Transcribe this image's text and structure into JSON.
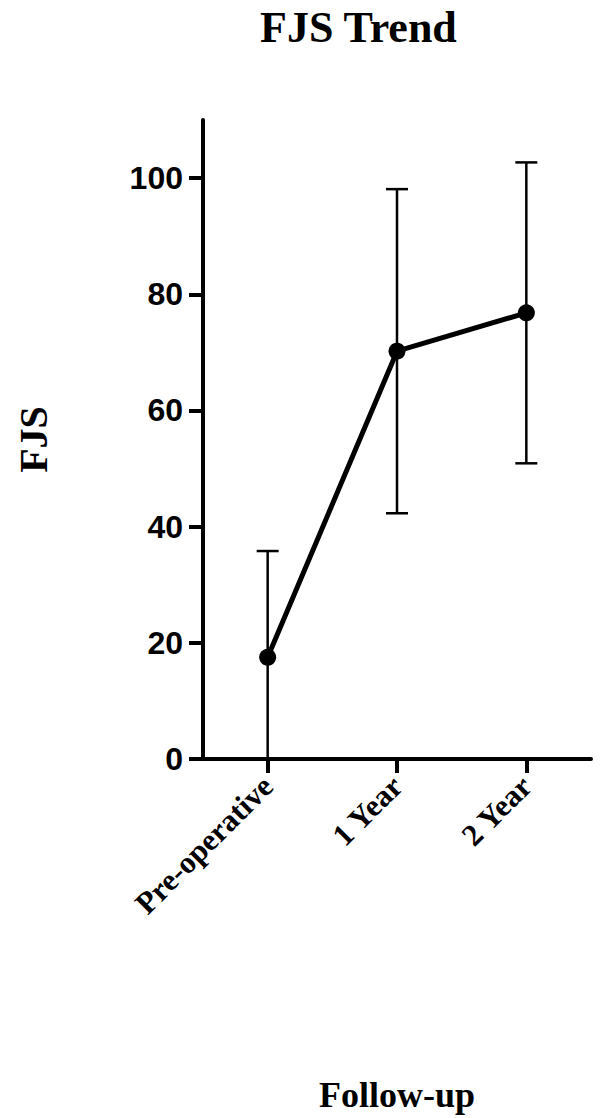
{
  "chart_data": {
    "type": "line",
    "title": "FJS Trend",
    "x_label": "Follow-up",
    "y_label": "FJS",
    "categories": [
      "Pre-operative",
      "1 Year",
      "2 Year"
    ],
    "values": [
      17.5,
      70.2,
      76.8
    ],
    "errors": [
      18.3,
      27.9,
      25.9
    ],
    "color": "#000000",
    "marker": "circle",
    "ylim": [
      0,
      110
    ],
    "yticks": [
      0,
      20,
      40,
      60,
      80,
      100
    ],
    "grid": false
  }
}
